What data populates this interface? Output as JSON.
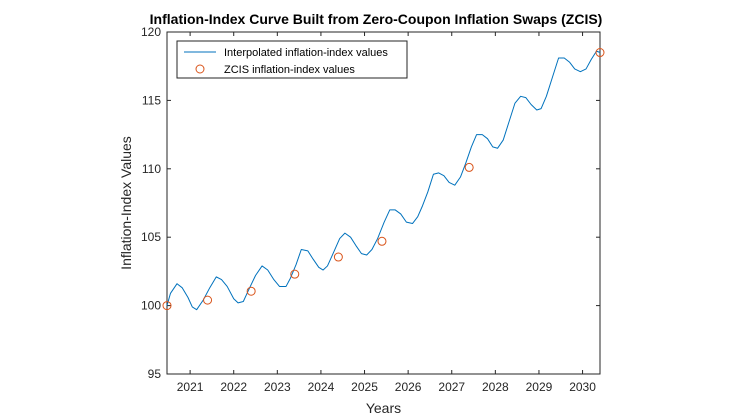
{
  "chart_data": {
    "type": "line",
    "title": "Inflation-Index Curve Built from Zero-Coupon Inflation Swaps (ZCIS)",
    "xlabel": "Years",
    "ylabel": "Inflation-Index Values",
    "xlim": [
      2020.47,
      2030.4
    ],
    "ylim": [
      95,
      120
    ],
    "xticks": [
      2021,
      2022,
      2023,
      2024,
      2025,
      2026,
      2027,
      2028,
      2029,
      2030
    ],
    "yticks": [
      95,
      100,
      105,
      110,
      115,
      120
    ],
    "grid": false,
    "legend": {
      "placement": "top-left",
      "entries": [
        "Interpolated inflation-index values",
        "ZCIS inflation-index values"
      ]
    },
    "colors": {
      "line": "#0072BD",
      "markers": "#D95319",
      "axes": "#262626"
    },
    "series": [
      {
        "name": "Interpolated inflation-index values",
        "style": "line",
        "x": [
          2020.47,
          2020.55,
          2020.7,
          2020.82,
          2020.95,
          2021.05,
          2021.15,
          2021.3,
          2021.45,
          2021.6,
          2021.72,
          2021.85,
          2022.0,
          2022.1,
          2022.22,
          2022.35,
          2022.5,
          2022.65,
          2022.78,
          2022.92,
          2023.05,
          2023.2,
          2023.3,
          2023.43,
          2023.55,
          2023.7,
          2023.82,
          2023.95,
          2024.05,
          2024.15,
          2024.25,
          2024.43,
          2024.55,
          2024.68,
          2024.8,
          2024.93,
          2025.05,
          2025.17,
          2025.3,
          2025.45,
          2025.58,
          2025.7,
          2025.83,
          2025.96,
          2026.1,
          2026.22,
          2026.33,
          2026.45,
          2026.58,
          2026.7,
          2026.82,
          2026.94,
          2027.07,
          2027.2,
          2027.32,
          2027.45,
          2027.57,
          2027.7,
          2027.82,
          2027.94,
          2028.05,
          2028.18,
          2028.3,
          2028.45,
          2028.58,
          2028.7,
          2028.82,
          2028.95,
          2029.05,
          2029.17,
          2029.32,
          2029.45,
          2029.58,
          2029.7,
          2029.82,
          2029.95,
          2030.08,
          2030.2,
          2030.32,
          2030.4
        ],
        "y": [
          100.0,
          100.9,
          101.6,
          101.3,
          100.6,
          99.9,
          99.7,
          100.4,
          101.3,
          102.1,
          101.9,
          101.4,
          100.5,
          100.2,
          100.3,
          101.2,
          102.2,
          102.9,
          102.6,
          101.9,
          101.4,
          101.4,
          102.0,
          103.0,
          104.1,
          104.0,
          103.4,
          102.8,
          102.6,
          102.9,
          103.6,
          104.9,
          105.3,
          105.0,
          104.4,
          103.8,
          103.7,
          104.1,
          104.9,
          106.1,
          107.0,
          107.0,
          106.7,
          106.1,
          106.0,
          106.5,
          107.3,
          108.3,
          109.6,
          109.7,
          109.5,
          109.0,
          108.8,
          109.4,
          110.4,
          111.6,
          112.5,
          112.5,
          112.2,
          111.6,
          111.5,
          112.1,
          113.3,
          114.8,
          115.3,
          115.2,
          114.7,
          114.3,
          114.4,
          115.3,
          116.8,
          118.1,
          118.1,
          117.8,
          117.3,
          117.1,
          117.3,
          118.0,
          118.6,
          118.5
        ]
      },
      {
        "name": "ZCIS inflation-index values",
        "style": "markers",
        "x": [
          2020.47,
          2021.4,
          2022.4,
          2023.4,
          2024.4,
          2025.4,
          2027.4,
          2030.4
        ],
        "y": [
          100.0,
          100.4,
          101.05,
          102.3,
          103.55,
          104.7,
          110.1,
          118.5
        ]
      }
    ]
  }
}
